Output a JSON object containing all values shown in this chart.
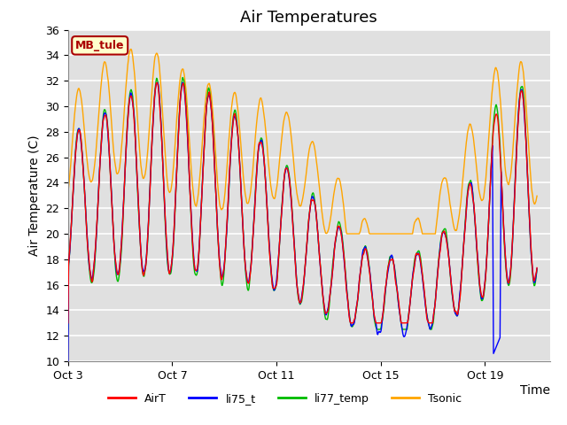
{
  "title": "Air Temperatures",
  "ylabel": "Air Temperature (C)",
  "ylim": [
    10,
    36
  ],
  "yticks": [
    10,
    12,
    14,
    16,
    18,
    20,
    22,
    24,
    26,
    28,
    30,
    32,
    34,
    36
  ],
  "xtick_positions": [
    0,
    4,
    8,
    12,
    16
  ],
  "xtick_labels": [
    "Oct 3",
    "Oct 7",
    "Oct 11",
    "Oct 15",
    "Oct 19"
  ],
  "xlim": [
    0,
    18.5
  ],
  "colors": {
    "AirT": "#ff0000",
    "li75_t": "#0000ff",
    "li77_temp": "#00bb00",
    "Tsonic": "#ffa500"
  },
  "annotation_text": "MB_tule",
  "annotation_box_color": "#ffffcc",
  "annotation_border_color": "#aa0000",
  "plot_bg_color": "#e0e0e0",
  "grid_color": "#ffffff",
  "title_fontsize": 13,
  "axis_fontsize": 10,
  "tick_fontsize": 9,
  "linewidth": 1.0
}
